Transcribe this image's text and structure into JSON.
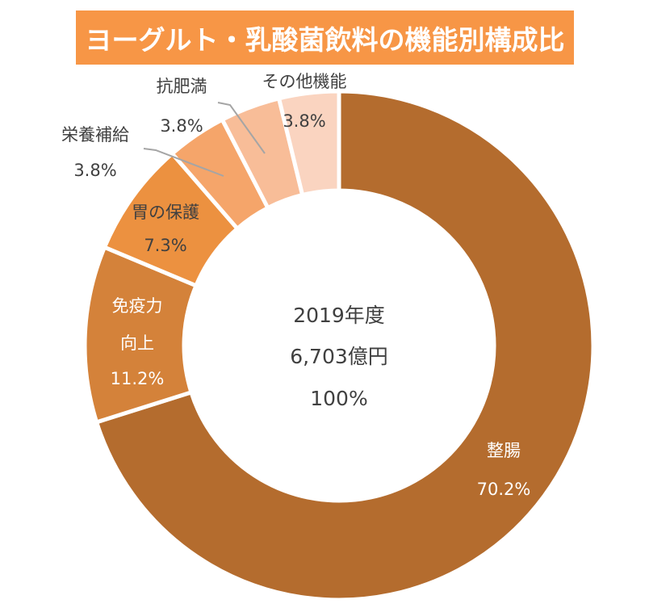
{
  "chart_data": {
    "type": "pie",
    "variant": "donut",
    "title": "ヨーグルト・乳酸菌飲料の機能別構成比",
    "center_text": [
      "2019年度",
      "6,703億円",
      "100%"
    ],
    "start": "top",
    "direction": "clockwise",
    "slices": [
      {
        "name": "整腸",
        "label_lines": [
          "整腸"
        ],
        "value": 70.2,
        "value_label": "70.2%",
        "color": "#B46C2E",
        "label_color": "#FFFFFF"
      },
      {
        "name": "免疫力向上",
        "label_lines": [
          "免疫力",
          "向上"
        ],
        "value": 11.2,
        "value_label": "11.2%",
        "color": "#D4823A",
        "label_color": "#FFFFFF"
      },
      {
        "name": "胃の保護",
        "label_lines": [
          "胃の保護"
        ],
        "value": 7.3,
        "value_label": "7.3%",
        "color": "#EC9140",
        "label_color": "#404040"
      },
      {
        "name": "栄養補給",
        "label_lines": [
          "栄養補給"
        ],
        "value": 3.8,
        "value_label": "3.8%",
        "color": "#F5A56A",
        "label_color": "#404040"
      },
      {
        "name": "抗肥満",
        "label_lines": [
          "抗肥満"
        ],
        "value": 3.8,
        "value_label": "3.8%",
        "color": "#F8BD98",
        "label_color": "#404040"
      },
      {
        "name": "その他機能",
        "label_lines": [
          "その他機能"
        ],
        "value": 3.8,
        "value_label": "3.8%",
        "color": "#FAD4C0",
        "label_color": "#404040"
      }
    ],
    "leader_line_color": "#A5A5A5"
  },
  "colors": {
    "title_bg": "#F79646",
    "title_text": "#FFFFFF",
    "center_text": "#404040"
  }
}
